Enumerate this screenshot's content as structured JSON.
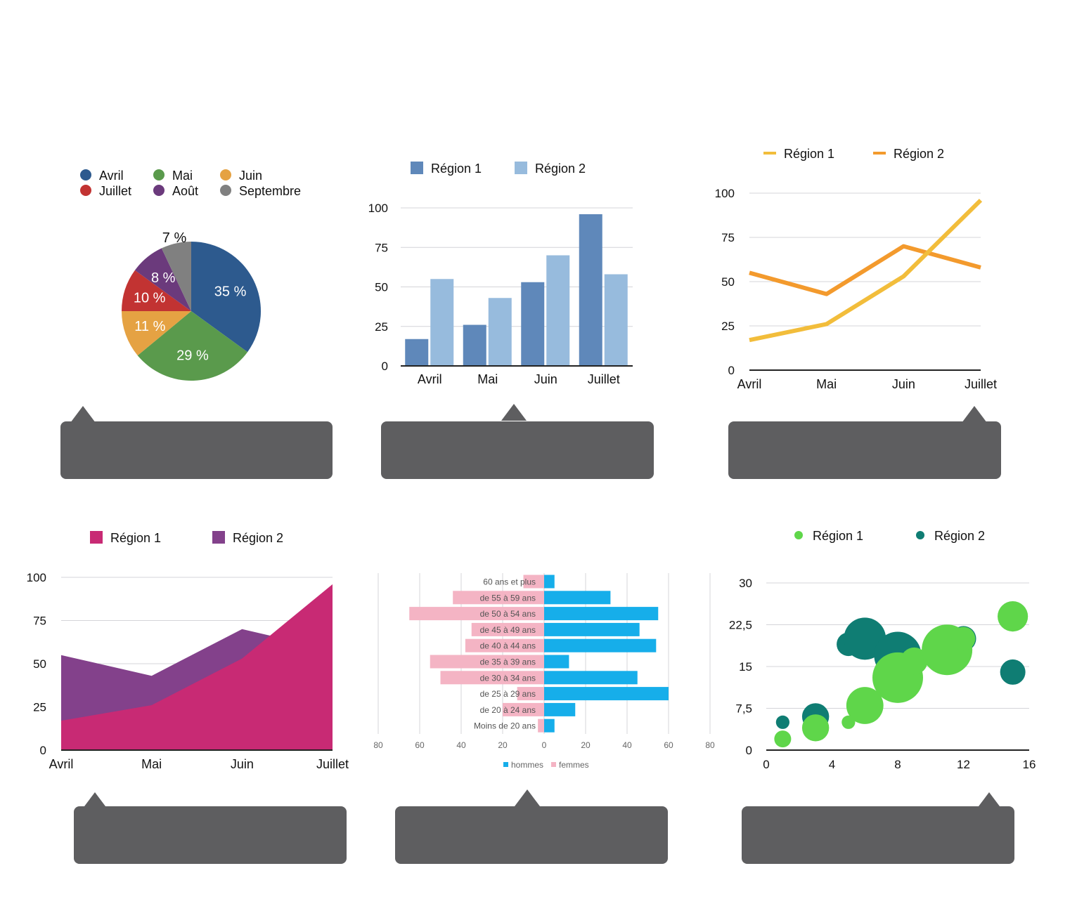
{
  "chart_data": [
    {
      "type": "pie",
      "legend": [
        "Avril",
        "Juillet",
        "Mai",
        "Août",
        "Juin",
        "Septembre"
      ],
      "categories": [
        "Avril",
        "Mai",
        "Juin",
        "Juillet",
        "Août",
        "Septembre"
      ],
      "values": [
        35,
        29,
        11,
        10,
        8,
        7
      ],
      "labels": [
        "35 %",
        "29 %",
        "11 %",
        "10 %",
        "8 %",
        "7 %"
      ],
      "colors": [
        "#2d5a8e",
        "#5a9a4c",
        "#e5a243",
        "#c23332",
        "#6b3a7c",
        "#808080"
      ]
    },
    {
      "type": "bar",
      "categories": [
        "Avril",
        "Mai",
        "Juin",
        "Juillet"
      ],
      "series": [
        {
          "name": "Région 1",
          "values": [
            17,
            26,
            53,
            96
          ],
          "color": "#5f88ba"
        },
        {
          "name": "Région 2",
          "values": [
            55,
            43,
            70,
            58
          ],
          "color": "#97bbdd"
        }
      ],
      "ylim": [
        0,
        100
      ],
      "yticks": [
        "0",
        "25",
        "50",
        "75",
        "100"
      ],
      "grid": true
    },
    {
      "type": "line",
      "categories": [
        "Avril",
        "Mai",
        "Juin",
        "Juillet"
      ],
      "series": [
        {
          "name": "Région 1",
          "values": [
            17,
            26,
            53,
            96
          ],
          "color": "#f2bd3b"
        },
        {
          "name": "Région 2",
          "values": [
            55,
            43,
            70,
            58
          ],
          "color": "#f39a2d"
        }
      ],
      "ylim": [
        0,
        100
      ],
      "yticks": [
        "0",
        "25",
        "50",
        "75",
        "100"
      ],
      "grid": true
    },
    {
      "type": "area",
      "categories": [
        "Avril",
        "Mai",
        "Juin",
        "Juillet"
      ],
      "series": [
        {
          "name": "Région 1",
          "values": [
            17,
            26,
            53,
            96
          ],
          "color": "#c82a74"
        },
        {
          "name": "Région 2",
          "values": [
            55,
            43,
            70,
            58
          ],
          "color": "#83418b"
        }
      ],
      "ylim": [
        0,
        100
      ],
      "yticks": [
        "0",
        "25",
        "50",
        "75",
        "100"
      ],
      "grid": true
    },
    {
      "type": "bar",
      "orientation": "horizontal-diverging",
      "categories": [
        "60 ans et plus",
        "de 55 à 59 ans",
        "de 50 à 54 ans",
        "de 45 à 49 ans",
        "de 40 à 44 ans",
        "de 35 à 39 ans",
        "de 30 à 34 ans",
        "de 25 à 29 ans",
        "de 20 à 24 ans",
        "Moins de 20 ans"
      ],
      "series": [
        {
          "name": "hommes",
          "values": [
            5,
            32,
            55,
            46,
            54,
            12,
            45,
            60,
            15,
            5
          ],
          "color": "#16aeea"
        },
        {
          "name": "femmes",
          "values": [
            10,
            44,
            65,
            35,
            38,
            55,
            50,
            13,
            20,
            3
          ],
          "color": "#f4b4c4"
        }
      ],
      "xlim": [
        -80,
        80
      ],
      "xticks": [
        "80",
        "60",
        "40",
        "20",
        "0",
        "20",
        "40",
        "60",
        "80"
      ],
      "grid": true
    },
    {
      "type": "scatter",
      "subtype": "bubble",
      "series": [
        {
          "name": "Région 1",
          "color": "#5fd64a",
          "points": [
            [
              1,
              2,
              1
            ],
            [
              3,
              4,
              1.6
            ],
            [
              5,
              5,
              0.8
            ],
            [
              6,
              8,
              2.2
            ],
            [
              8,
              13,
              3
            ],
            [
              9,
              16,
              1.6
            ],
            [
              11,
              18,
              3
            ],
            [
              12,
              20,
              1.4
            ],
            [
              15,
              24,
              1.8
            ]
          ]
        },
        {
          "name": "Région 2",
          "color": "#0f7d73",
          "points": [
            [
              1,
              5,
              0.8
            ],
            [
              3,
              6,
              1.6
            ],
            [
              5,
              19,
              1.4
            ],
            [
              6,
              20,
              2.5
            ],
            [
              8,
              17,
              2.8
            ],
            [
              12,
              20,
              1.5
            ],
            [
              15,
              14,
              1.5
            ]
          ]
        }
      ],
      "xlim": [
        0,
        16
      ],
      "ylim": [
        0,
        30
      ],
      "xticks": [
        "0",
        "4",
        "8",
        "12",
        "16"
      ],
      "yticks": [
        "0",
        "7,5",
        "15",
        "22,5",
        "30"
      ],
      "grid": true
    }
  ]
}
